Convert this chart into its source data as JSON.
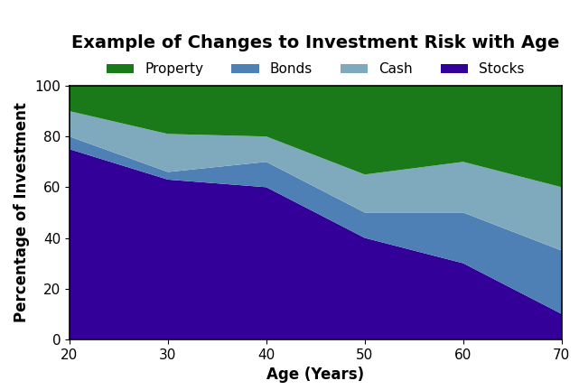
{
  "title": "Example of Changes to Investment Risk with Age",
  "xlabel": "Age (Years)",
  "ylabel": "Percentage of Investment",
  "ages": [
    20,
    30,
    40,
    50,
    60,
    70
  ],
  "stocks": [
    75,
    63,
    60,
    40,
    30,
    10
  ],
  "bonds": [
    5,
    3,
    10,
    10,
    20,
    25
  ],
  "cash": [
    10,
    15,
    10,
    15,
    20,
    25
  ],
  "property": [
    10,
    19,
    20,
    35,
    30,
    40
  ],
  "colors": {
    "stocks": "#330099",
    "bonds": "#4E7FB5",
    "cash": "#7FAABD",
    "property": "#1A7A1A"
  },
  "ylim": [
    0,
    100
  ],
  "xlim": [
    20,
    70
  ],
  "title_fontsize": 14,
  "label_fontsize": 12,
  "tick_fontsize": 11,
  "legend_fontsize": 11,
  "background_color": "#ffffff"
}
